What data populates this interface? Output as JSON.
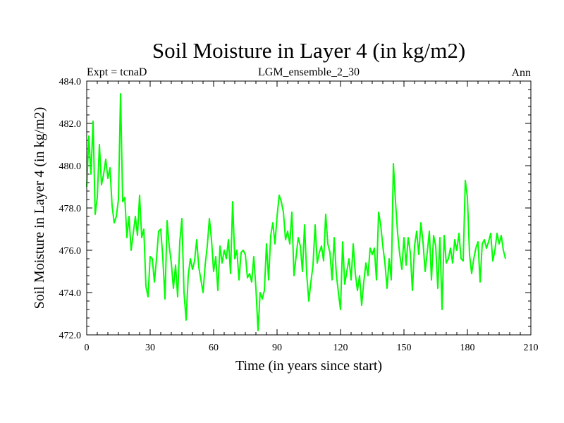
{
  "chart_data": {
    "type": "line",
    "title": "Soil Moisture in Layer 4 (in kg/m2)",
    "subtitle_left": "Expt = tcnaD",
    "subtitle_center": "LGM_ensemble_2_30",
    "subtitle_right": "Ann",
    "xlabel": "Time (in years since start)",
    "ylabel": "Soil Moisture in Layer 4 (in kg/m2)",
    "xlim": [
      0,
      210
    ],
    "ylim": [
      472.0,
      484.0
    ],
    "xticks": [
      0,
      30,
      60,
      90,
      120,
      150,
      180,
      210
    ],
    "xtick_labels": [
      "0",
      "30",
      "60",
      "90",
      "120",
      "150",
      "180",
      "210"
    ],
    "yticks": [
      472.0,
      474.0,
      476.0,
      478.0,
      480.0,
      482.0,
      484.0
    ],
    "ytick_labels": [
      "472.0",
      "474.0",
      "476.0",
      "478.0",
      "480.0",
      "482.0",
      "484.0"
    ],
    "line_color": "#00ff00",
    "series": [
      {
        "name": "Soil Moisture",
        "x_start": 0,
        "x_step": 1,
        "values": [
          479.0,
          481.4,
          479.6,
          482.1,
          477.7,
          478.5,
          481.0,
          479.1,
          479.6,
          480.3,
          479.4,
          479.9,
          478.1,
          477.3,
          477.6,
          478.4,
          483.4,
          478.3,
          478.5,
          476.6,
          477.6,
          476.0,
          476.8,
          477.6,
          476.7,
          478.6,
          476.6,
          477.0,
          474.3,
          473.8,
          475.7,
          475.6,
          474.5,
          475.6,
          476.9,
          477.0,
          475.6,
          473.7,
          477.4,
          476.2,
          475.4,
          474.2,
          475.3,
          473.8,
          476.4,
          477.5,
          474.0,
          472.7,
          474.8,
          475.6,
          475.1,
          475.5,
          476.5,
          475.2,
          474.6,
          474.0,
          475.3,
          476.2,
          477.5,
          476.5,
          475.0,
          475.7,
          474.1,
          476.2,
          475.4,
          476.0,
          475.6,
          476.5,
          474.9,
          478.3,
          475.6,
          476.0,
          474.6,
          475.9,
          476.0,
          475.8,
          474.7,
          474.9,
          474.5,
          475.7,
          474.2,
          472.2,
          474.0,
          473.7,
          474.1,
          476.3,
          474.6,
          476.7,
          477.3,
          476.3,
          477.6,
          478.6,
          478.3,
          477.8,
          476.5,
          476.9,
          476.3,
          477.8,
          474.8,
          475.7,
          476.6,
          476.2,
          475.0,
          477.2,
          474.9,
          473.6,
          474.5,
          475.3,
          477.2,
          475.4,
          475.9,
          476.2,
          475.5,
          477.7,
          476.3,
          475.9,
          474.6,
          476.6,
          474.9,
          474.0,
          473.2,
          476.4,
          474.4,
          475.0,
          475.6,
          474.6,
          476.3,
          474.9,
          474.1,
          474.8,
          473.4,
          474.5,
          475.4,
          474.8,
          476.1,
          475.8,
          476.1,
          474.6,
          477.8,
          477.2,
          476.2,
          475.4,
          474.2,
          475.6,
          474.6,
          480.1,
          478.3,
          476.8,
          475.8,
          475.1,
          476.6,
          475.3,
          476.6,
          475.9,
          474.1,
          476.2,
          476.9,
          475.8,
          477.3,
          476.4,
          475.0,
          475.9,
          476.9,
          474.6,
          476.7,
          476.2,
          474.2,
          476.6,
          473.2,
          476.7,
          475.4,
          475.6,
          476.1,
          475.4,
          476.5,
          476.0,
          476.8,
          475.6,
          475.5,
          479.3,
          478.5,
          475.8,
          474.9,
          475.6,
          476.1,
          476.4,
          474.5,
          476.3,
          476.5,
          476.1,
          476.4,
          476.8,
          475.5,
          476.0,
          476.8,
          476.3,
          476.7,
          476.0,
          475.6
        ]
      }
    ]
  }
}
